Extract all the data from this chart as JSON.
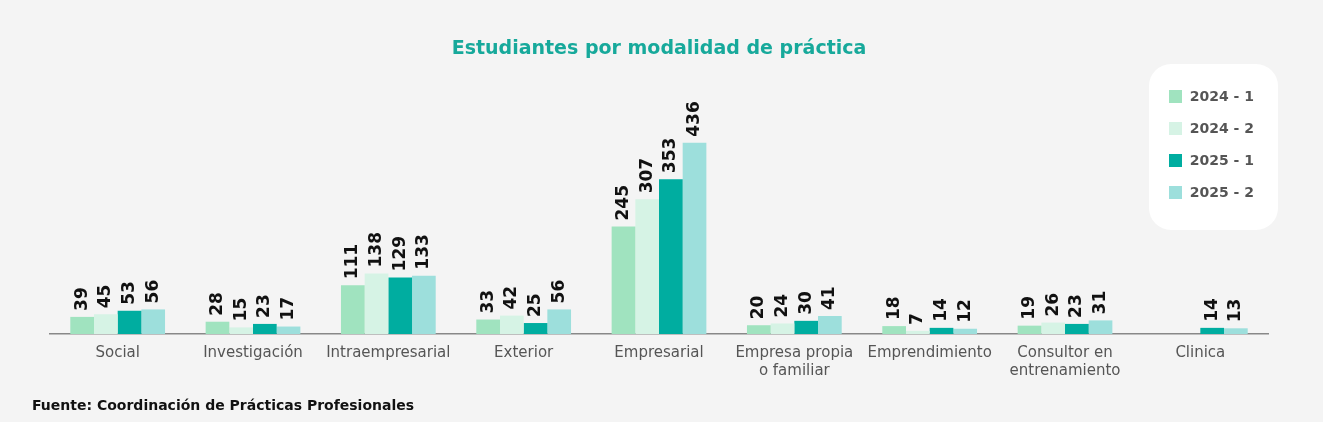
{
  "chart_data": {
    "type": "bar",
    "title": "Estudiantes por modalidad de práctica",
    "categories": [
      "Social",
      "Investigación",
      "Intraempresarial",
      "Exterior",
      "Empresarial",
      "Empresa propia o familiar",
      "Emprendimiento",
      "Consultor en entrenamiento",
      "Clinica"
    ],
    "series": [
      {
        "name": "2024 - 1",
        "color": "#a0e3bf",
        "values": [
          39,
          28,
          111,
          33,
          245,
          20,
          18,
          19,
          null
        ]
      },
      {
        "name": "2024 - 2",
        "color": "#d6f3e5",
        "values": [
          45,
          15,
          138,
          42,
          307,
          24,
          7,
          26,
          null
        ]
      },
      {
        "name": "2025 - 1",
        "color": "#00ada0",
        "values": [
          53,
          23,
          129,
          25,
          353,
          30,
          14,
          23,
          14
        ]
      },
      {
        "name": "2025 - 2",
        "color": "#9ddfdc",
        "values": [
          56,
          17,
          133,
          56,
          436,
          41,
          12,
          31,
          13
        ]
      }
    ],
    "data_labels": true,
    "grid": false,
    "legend": "top right",
    "annotations": [
      "Fuente: Coordinación de Prácticas Profesionales"
    ]
  }
}
